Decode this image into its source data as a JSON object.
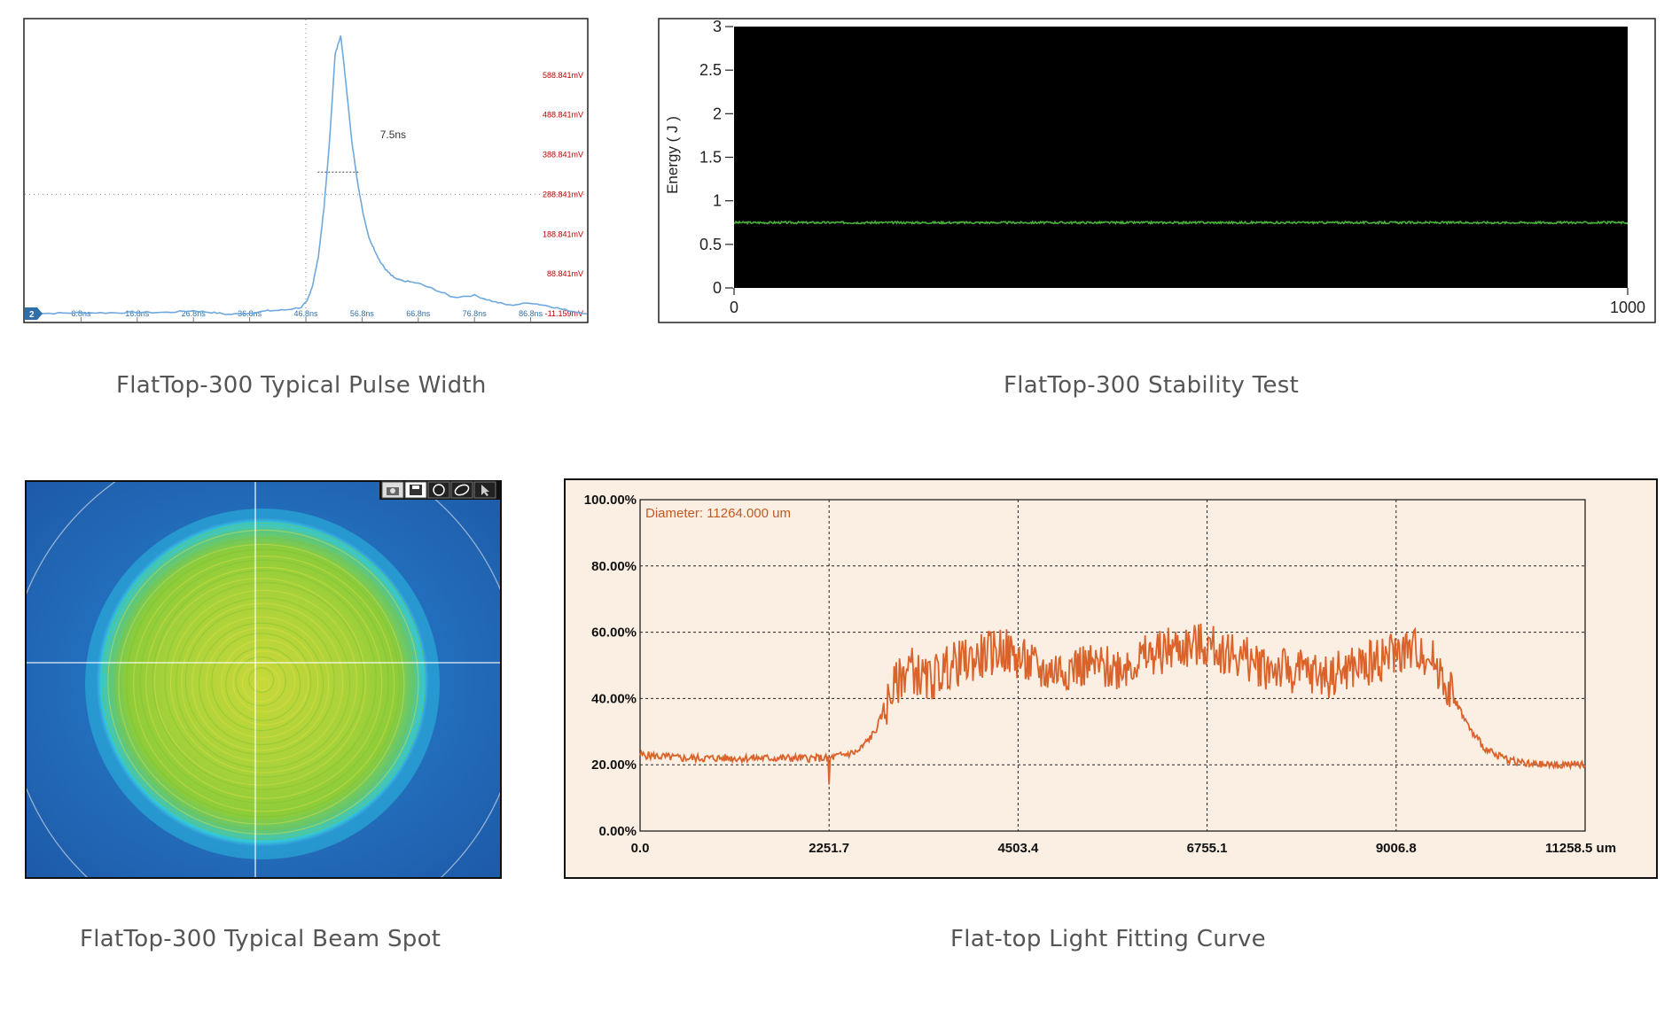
{
  "captions": {
    "pulse": "FlatTop-300 Typical Pulse Width",
    "stability": "FlatTop-300 Stability Test",
    "beam": "FlatTop-300 Typical Beam Spot",
    "fitting": "Flat-top Light Fitting Curve"
  },
  "chart_data": [
    {
      "type": "line",
      "x_ticks": [
        "6.8ns",
        "16.8ns",
        "26.8ns",
        "36.8ns",
        "46.8ns",
        "56.8ns",
        "66.8ns",
        "76.8ns",
        "86.8ns"
      ],
      "y_ticks": [
        "588.841mV",
        "488.841mV",
        "388.841mV",
        "288.841mV",
        "188.841mV",
        "88.841mV",
        "-11.159mV"
      ],
      "channel_marker": "2",
      "annotation": "7.5ns",
      "xlim": [
        -3.2,
        96.8
      ],
      "ylim": [
        -31.159,
        728.841
      ],
      "series": [
        {
          "x": [
            -3.2,
            2,
            6.8,
            12,
            16.8,
            22,
            26.8,
            30,
            33,
            36.8,
            40,
            43,
            46,
            47,
            48,
            49,
            50,
            51,
            52,
            53,
            54,
            55,
            56,
            57,
            58,
            59,
            60,
            61,
            62,
            63,
            64,
            66.8,
            70,
            73,
            76.8,
            80,
            83,
            86.8,
            90,
            93,
            96.8
          ],
          "y": [
            -11,
            -10,
            -9,
            -9,
            -8,
            -8,
            -4,
            -8,
            -13,
            -10,
            -4,
            -2,
            5,
            20,
            60,
            130,
            250,
            420,
            640,
            690,
            560,
            420,
            320,
            240,
            180,
            150,
            120,
            100,
            85,
            75,
            72,
            65,
            48,
            30,
            35,
            20,
            10,
            16,
            8,
            -2,
            -11
          ]
        }
      ],
      "color": "#6fa8dc"
    },
    {
      "type": "line",
      "ylabel": "Energy ( J )",
      "x_ticks": [
        "0",
        "1000"
      ],
      "y_ticks": [
        "0",
        "0.5",
        "1",
        "1.5",
        "2",
        "2.5",
        "3"
      ],
      "xlim": [
        0,
        1000
      ],
      "ylim": [
        0,
        3
      ],
      "mean_energy": 0.75,
      "noise": 0.012,
      "color": "#49b33a",
      "background": "#000000"
    },
    {
      "type": "heatmap",
      "icons": [
        "camera-icon",
        "save-icon",
        "circle-icon",
        "ellipse-icon",
        "cursor-icon"
      ],
      "colors": {
        "background": "#1f63b5",
        "ring": "#33c7d9",
        "plateau": "#8ccc3a",
        "center": "#c8d83a"
      }
    },
    {
      "type": "line",
      "annotation": "Diameter: 11264.000 um",
      "x_ticks": [
        "0.0",
        "2251.7",
        "4503.4",
        "6755.1",
        "9006.8",
        "11258.5 um"
      ],
      "y_ticks": [
        "100.00%",
        "80.00%",
        "60.00%",
        "40.00%",
        "20.00%",
        "0.00%"
      ],
      "xlim": [
        0,
        11258.5
      ],
      "ylim": [
        0,
        100
      ],
      "series": [
        {
          "x": [
            0,
            500,
            1000,
            1500,
            2000,
            2251.7,
            2600,
            2800,
            3000,
            3200,
            3400,
            3700,
            4000,
            4300,
            4503.4,
            4800,
            5200,
            5600,
            6000,
            6300,
            6700,
            7000,
            7400,
            7800,
            8200,
            8600,
            9000,
            9300,
            9500,
            9700,
            9900,
            10100,
            10300,
            10600,
            10900,
            11258.5
          ],
          "y": [
            23,
            22,
            22,
            22,
            22,
            22,
            24,
            30,
            42,
            50,
            45,
            50,
            52,
            55,
            52,
            48,
            50,
            49,
            52,
            55,
            56,
            54,
            50,
            48,
            47,
            50,
            54,
            55,
            50,
            40,
            30,
            24,
            22,
            20,
            20,
            20
          ]
        }
      ],
      "color": "#d9632a",
      "background": "#fbeee2"
    }
  ]
}
